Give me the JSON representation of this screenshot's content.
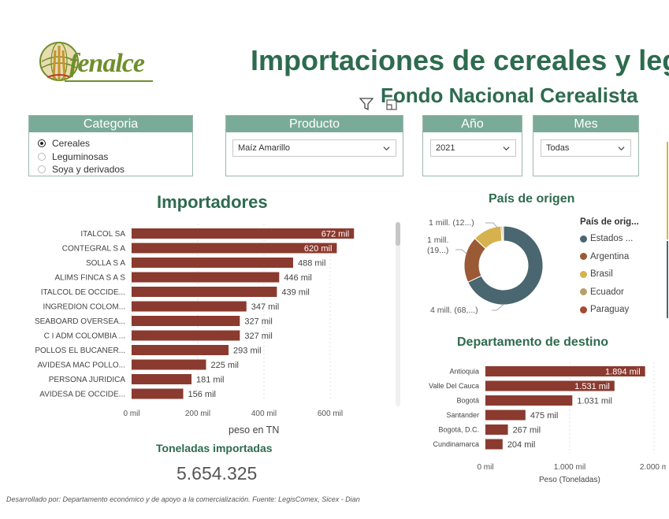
{
  "header": {
    "logo_text": "fenalce",
    "title": "Importaciones de cereales y legu",
    "subtitle": "Fondo Nacional Cerealista"
  },
  "slicers": {
    "categoria": {
      "title": "Categoria",
      "options": [
        "Cereales",
        "Leguminosas",
        "Soya y derivados"
      ],
      "selected": "Cereales"
    },
    "producto": {
      "title": "Producto",
      "value": "Maíz Amarillo"
    },
    "anio": {
      "title": "Año",
      "value": "2021"
    },
    "mes": {
      "title": "Mes",
      "value": "Todas"
    }
  },
  "importadores": {
    "title": "Importadores",
    "x_axis_title": "peso en TN",
    "ticks": [
      "0 mil",
      "200 mil",
      "400 mil",
      "600 mil"
    ]
  },
  "kpi": {
    "label": "Toneladas importadas",
    "value": "5.654.325"
  },
  "pais": {
    "title": "País de origen",
    "legend_title": "País de orig...",
    "legend": [
      "Estados ...",
      "Argentina",
      "Brasil",
      "Ecuador",
      "Paraguay"
    ],
    "callouts": [
      "1 mill. (12...)",
      "1 mill.",
      "(19...)",
      "4 mill. (68,...)"
    ]
  },
  "departamento": {
    "title": "Departamento de destino",
    "x_axis_title": "Peso (Toneladas)",
    "ticks": [
      "0 mil",
      "1.000 mil",
      "2.000 m"
    ]
  },
  "footer": "Desarrollado por: Departamento económico y de apoyo a la comercialización. Fuente: LegisComex, Sicex - Dian",
  "colors": {
    "bar": "#8b3a2f",
    "title_green": "#2e6b4e",
    "slicer_header": "#7aab98",
    "donut_usa": "#4a6670",
    "donut_argentina": "#9a5a36",
    "donut_brasil": "#d6b24e",
    "donut_ecuador": "#b8a06a",
    "donut_paraguay": "#a44a35"
  },
  "chart_data": [
    {
      "type": "bar",
      "orientation": "horizontal",
      "title": "Importadores",
      "xlabel": "peso en TN",
      "xlim": [
        0,
        750
      ],
      "categories": [
        "ITALCOL SA",
        "CONTEGRAL S A",
        "SOLLA S A",
        "ALIMS FINCA S A S",
        "ITALCOL DE OCCIDE...",
        "INGREDION COLOM...",
        "SEABOARD OVERSEA...",
        "C I ADM COLOMBIA ...",
        "POLLOS EL BUCANER...",
        "AVIDESA MAC POLLO...",
        "PERSONA JURIDICA",
        "AVIDESA DE OCCIDE..."
      ],
      "values": [
        672,
        620,
        488,
        446,
        439,
        347,
        327,
        327,
        293,
        225,
        181,
        156
      ],
      "labels": [
        "672 mil",
        "620 mil",
        "488 mil",
        "446 mil",
        "439 mil",
        "347 mil",
        "327 mil",
        "327 mil",
        "293 mil",
        "225 mil",
        "181 mil",
        "156 mil"
      ]
    },
    {
      "type": "pie",
      "donut": true,
      "title": "País de origen",
      "categories": [
        "Estados ...",
        "Argentina",
        "Brasil",
        "Ecuador",
        "Paraguay"
      ],
      "values": [
        68,
        19,
        12,
        0.6,
        0.4
      ]
    },
    {
      "type": "bar",
      "orientation": "horizontal",
      "title": "Departamento de destino",
      "xlabel": "Peso (Toneladas)",
      "xlim": [
        0,
        2050
      ],
      "categories": [
        "Antioquia",
        "Valle Del Cauca",
        "Bogotá",
        "Santander",
        "Bogotá, D.C.",
        "Cundinamarca"
      ],
      "values": [
        1894,
        1531,
        1031,
        475,
        267,
        204
      ],
      "labels": [
        "1.894 mil",
        "1.531 mil",
        "1.031 mil",
        "475 mil",
        "267 mil",
        "204 mil"
      ]
    }
  ]
}
